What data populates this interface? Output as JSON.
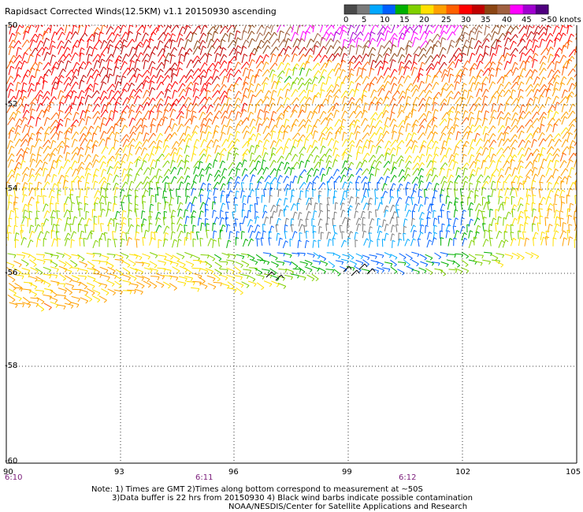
{
  "title": "Rapidsact Corrected Winds(12.5KM) v1.1 20150930 ascending",
  "legend": {
    "colors": [
      "#4a4a4a",
      "#7a7a7a",
      "#00a8ff",
      "#0060ff",
      "#00b000",
      "#80d000",
      "#ffe000",
      "#ffa000",
      "#ff6000",
      "#ff0000",
      "#c00000",
      "#8b4513",
      "#a06040",
      "#ff00ff",
      "#a000d0",
      "#500080"
    ],
    "labels": [
      "0",
      "5",
      "10",
      "15",
      "20",
      "25",
      "30",
      "35",
      "40",
      "45",
      ">50 knots"
    ]
  },
  "lat_labels": [
    "-50",
    "-52",
    "-54",
    "-56",
    "-58",
    "-60"
  ],
  "lon_labels": [
    "90",
    "93",
    "96",
    "99",
    "102",
    "105"
  ],
  "time_labels": [
    "6:10",
    "6:11",
    "6:12"
  ],
  "notes": [
    "Note: 1) Times are GMT 2)Times along bottom correspond to measurement at ~50S",
    "3)Data buffer is 22 hrs from 20150930 4) Black wind barbs indicate possible contamination",
    "NOAA/NESDIS/Center for Satellite Applications and Research"
  ]
}
